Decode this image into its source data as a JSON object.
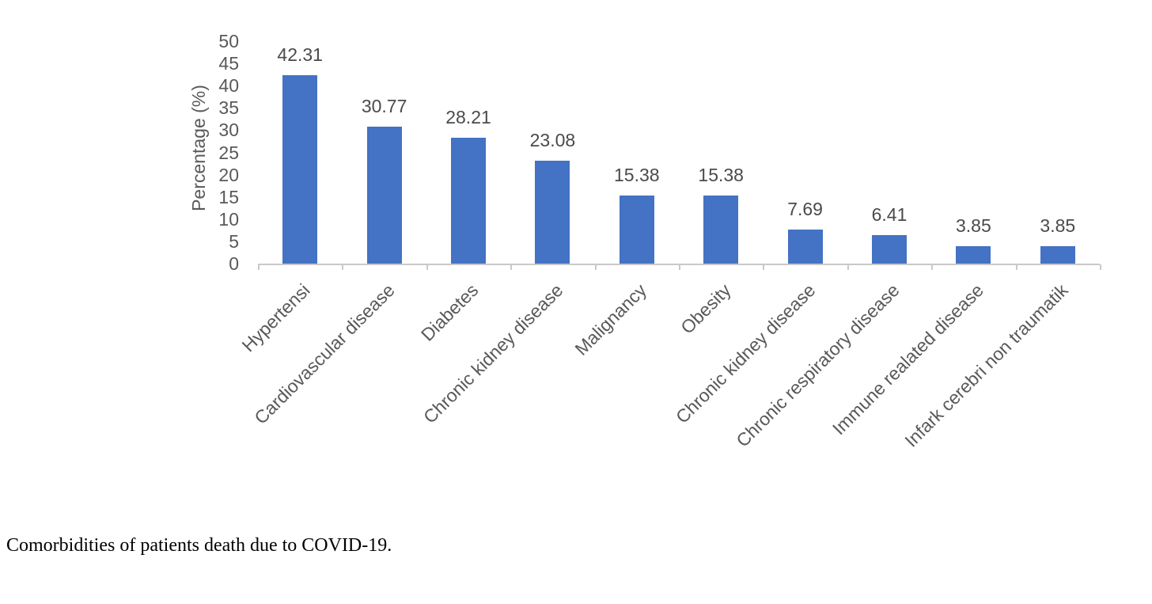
{
  "caption": "Comorbidities of patients death due to COVID-19.",
  "chart_data": {
    "type": "bar",
    "title": "",
    "xlabel": "",
    "ylabel": "Percentage (%)",
    "ylim": [
      0,
      50
    ],
    "ytick_step": 5,
    "ytick_labels": [
      "0",
      "5",
      "10",
      "15",
      "20",
      "25",
      "30",
      "35",
      "40",
      "45",
      "50"
    ],
    "categories": [
      "Hypertensi",
      "Cardiovascular disease",
      "Diabetes",
      "Chronic kidney disease",
      "Malignancy",
      "Obesity",
      "Chronic kidney disease",
      "Chronic respiratory disease",
      "Immune realated disease",
      "Infark cerebri non traumatik"
    ],
    "values": [
      42.31,
      30.77,
      28.21,
      23.08,
      15.38,
      15.38,
      7.69,
      6.41,
      3.85,
      3.85
    ],
    "data_labels": [
      "42.31",
      "30.77",
      "28.21",
      "23.08",
      "15.38",
      "15.38",
      "7.69",
      "6.41",
      "3.85",
      "3.85"
    ],
    "x_label_rotation_deg": 45,
    "grid": "off",
    "legend": "none",
    "colors": {
      "bar": "#4472C4",
      "axis_text": "#595959",
      "data_label": "#4a4a4a",
      "axis_line": "#c9c9c9"
    }
  }
}
